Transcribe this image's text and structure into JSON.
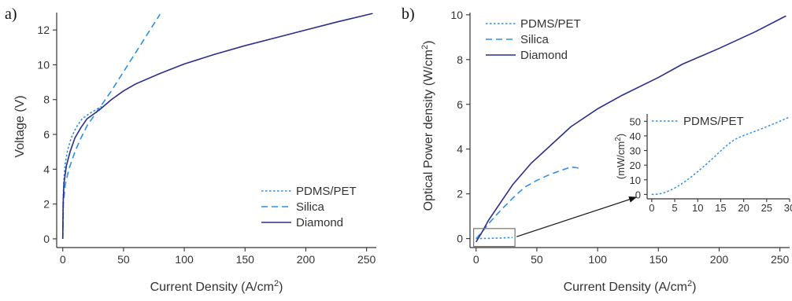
{
  "chart_data": [
    {
      "panel": "a)",
      "type": "line",
      "xlabel": "Current Density (A/cm",
      "xlabel_sup": "2",
      "xlabel_end": ")",
      "ylabel": "Voltage (V)",
      "xlim": [
        -5,
        258
      ],
      "ylim": [
        -0.5,
        13
      ],
      "xticks": [
        0,
        50,
        100,
        150,
        200,
        250
      ],
      "yticks": [
        0,
        2,
        4,
        6,
        8,
        10,
        12
      ],
      "legend": "bottom-right",
      "series": [
        {
          "name": "PDMS/PET",
          "color": "#2b8fe8",
          "dash": "dotted",
          "points": [
            [
              0,
              0
            ],
            [
              0.3,
              2.2
            ],
            [
              1,
              3.5
            ],
            [
              2,
              4.3
            ],
            [
              4,
              5.1
            ],
            [
              7,
              5.8
            ],
            [
              11,
              6.4
            ],
            [
              16,
              6.9
            ],
            [
              22,
              7.2
            ],
            [
              28,
              7.45
            ],
            [
              32,
              7.6
            ]
          ]
        },
        {
          "name": "Silica",
          "color": "#2b8fe8",
          "dash": "dashed",
          "points": [
            [
              0,
              0
            ],
            [
              0.5,
              2.0
            ],
            [
              2,
              3.1
            ],
            [
              5,
              4.0
            ],
            [
              10,
              5.0
            ],
            [
              15,
              5.8
            ],
            [
              20,
              6.5
            ],
            [
              30,
              7.5
            ],
            [
              40,
              8.5
            ],
            [
              50,
              9.6
            ],
            [
              60,
              10.7
            ],
            [
              70,
              11.8
            ],
            [
              80,
              12.9
            ]
          ]
        },
        {
          "name": "Diamond",
          "color": "#2c2d8c",
          "dash": "solid",
          "points": [
            [
              0,
              0
            ],
            [
              0.3,
              2.0
            ],
            [
              1,
              3.2
            ],
            [
              3,
              4.2
            ],
            [
              6,
              5.0
            ],
            [
              10,
              5.8
            ],
            [
              15,
              6.4
            ],
            [
              20,
              6.9
            ],
            [
              30,
              7.4
            ],
            [
              40,
              8.0
            ],
            [
              50,
              8.5
            ],
            [
              60,
              8.9
            ],
            [
              80,
              9.5
            ],
            [
              100,
              10.05
            ],
            [
              125,
              10.6
            ],
            [
              150,
              11.1
            ],
            [
              175,
              11.55
            ],
            [
              200,
              12.0
            ],
            [
              225,
              12.45
            ],
            [
              255,
              12.95
            ]
          ]
        }
      ]
    },
    {
      "panel": "b)",
      "type": "line",
      "xlabel": "Current Density (A/cm",
      "xlabel_sup": "2",
      "xlabel_end": ")",
      "ylabel": "Optical Power density (W/cm",
      "ylabel_sup": "2",
      "ylabel_end": ")",
      "xlim": [
        -5,
        258
      ],
      "ylim": [
        -0.4,
        10.1
      ],
      "xticks": [
        0,
        50,
        100,
        150,
        200,
        250
      ],
      "yticks": [
        0,
        2,
        4,
        6,
        8,
        10
      ],
      "legend": "top-left",
      "series": [
        {
          "name": "PDMS/PET",
          "color": "#2b8fe8",
          "dash": "dotted",
          "points": [
            [
              0,
              0
            ],
            [
              10,
              0.01
            ],
            [
              20,
              0.025
            ],
            [
              30,
              0.05
            ]
          ]
        },
        {
          "name": "Silica",
          "color": "#2b8fe8",
          "dash": "dashed",
          "points": [
            [
              0,
              0
            ],
            [
              5,
              0.3
            ],
            [
              10,
              0.65
            ],
            [
              20,
              1.25
            ],
            [
              30,
              1.8
            ],
            [
              40,
              2.3
            ],
            [
              50,
              2.6
            ],
            [
              60,
              2.85
            ],
            [
              70,
              3.05
            ],
            [
              78,
              3.2
            ],
            [
              85,
              3.15
            ]
          ]
        },
        {
          "name": "Diamond",
          "color": "#2c2d8c",
          "dash": "solid",
          "points": [
            [
              0,
              -0.15
            ],
            [
              5,
              0.3
            ],
            [
              10,
              0.8
            ],
            [
              20,
              1.6
            ],
            [
              30,
              2.4
            ],
            [
              45,
              3.35
            ],
            [
              60,
              4.1
            ],
            [
              78,
              5.0
            ],
            [
              100,
              5.8
            ],
            [
              120,
              6.4
            ],
            [
              150,
              7.2
            ],
            [
              170,
              7.8
            ],
            [
              200,
              8.5
            ],
            [
              230,
              9.25
            ],
            [
              255,
              9.95
            ]
          ]
        }
      ],
      "inset": {
        "ylabel": "(mW/cm",
        "ylabel_sup": "2",
        "ylabel_end": ")",
        "xlim": [
          -1,
          30
        ],
        "ylim": [
          -3,
          55
        ],
        "xticks": [
          0,
          5,
          10,
          15,
          20,
          25,
          30
        ],
        "yticks": [
          0,
          10,
          20,
          30,
          40,
          50
        ],
        "legend": "top",
        "series": [
          {
            "name": "PDMS/PET",
            "color": "#2b8fe8",
            "dash": "dotted",
            "points": [
              [
                0,
                0
              ],
              [
                1,
                0.1
              ],
              [
                2,
                0.6
              ],
              [
                3,
                1.5
              ],
              [
                4,
                2.8
              ],
              [
                5,
                4.4
              ],
              [
                6,
                6.2
              ],
              [
                7,
                8.3
              ],
              [
                8,
                10.6
              ],
              [
                9,
                13.0
              ],
              [
                10,
                15.6
              ],
              [
                11,
                18.3
              ],
              [
                12,
                21.0
              ],
              [
                13,
                23.9
              ],
              [
                14,
                26.8
              ],
              [
                15,
                29.7
              ],
              [
                16,
                32.6
              ],
              [
                17,
                35.2
              ],
              [
                18,
                37.4
              ],
              [
                19,
                39.0
              ],
              [
                20,
                40.3
              ],
              [
                22,
                42.6
              ],
              [
                24,
                45.0
              ],
              [
                26,
                47.6
              ],
              [
                28,
                50.2
              ],
              [
                30,
                53.0
              ]
            ]
          }
        ]
      }
    }
  ]
}
